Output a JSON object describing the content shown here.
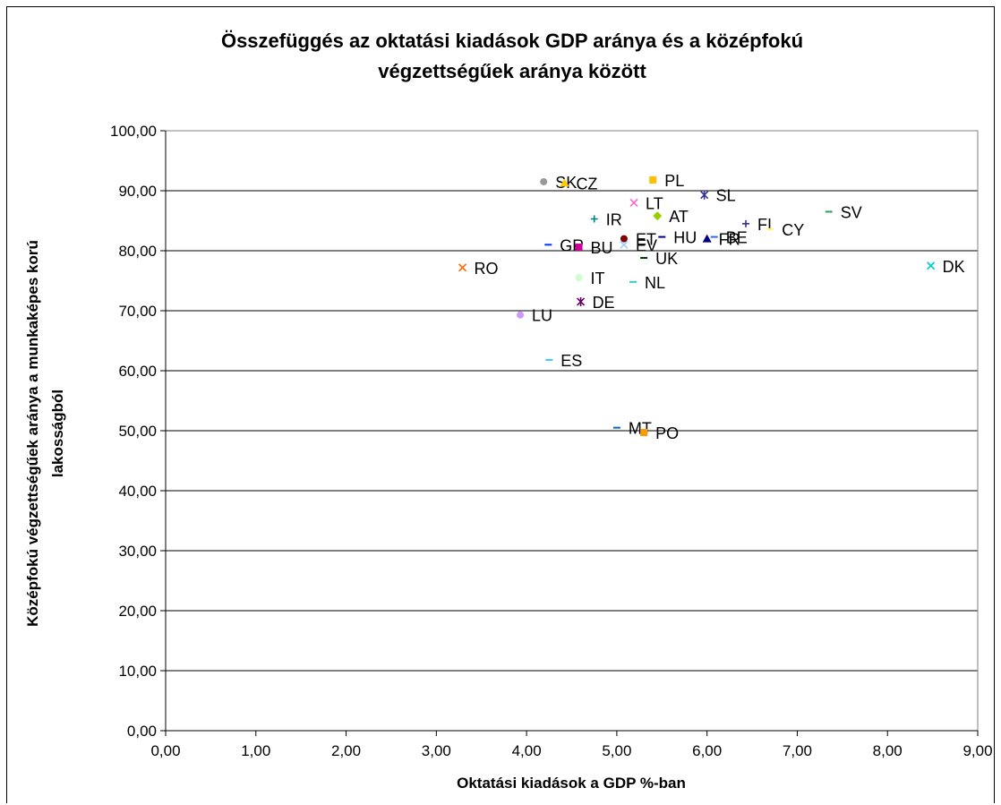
{
  "chart_data": {
    "type": "scatter",
    "title": [
      "Összefüggés az oktatási kiadások GDP aránya és a középfokú",
      "végzettségűek aránya között"
    ],
    "xlabel": "Oktatási kiadások a GDP %-ban",
    "ylabel": [
      "Középfokú végzettségűek aránya a munkaképes korú",
      "lakosságból"
    ],
    "xlim": [
      0,
      9
    ],
    "ylim": [
      0,
      100
    ],
    "xticks": [
      "0,00",
      "1,00",
      "2,00",
      "3,00",
      "4,00",
      "5,00",
      "6,00",
      "7,00",
      "8,00",
      "9,00"
    ],
    "yticks": [
      "0,00",
      "10,00",
      "20,00",
      "30,00",
      "40,00",
      "50,00",
      "60,00",
      "70,00",
      "80,00",
      "90,00",
      "100,00"
    ],
    "grid": "horizontal",
    "points": [
      {
        "label": "SK",
        "x": 4.19,
        "y": 91.5,
        "marker": "circle",
        "color": "#999999"
      },
      {
        "label": "CZ",
        "x": 4.42,
        "y": 91.3,
        "marker": "triangle",
        "color": "#ffcc00"
      },
      {
        "label": "PL",
        "x": 5.4,
        "y": 91.8,
        "marker": "square",
        "color": "#ffbf00"
      },
      {
        "label": "SL",
        "x": 5.97,
        "y": 89.3,
        "marker": "star",
        "color": "#333399"
      },
      {
        "label": "LT",
        "x": 5.19,
        "y": 88.0,
        "marker": "x",
        "color": "#ff66cc"
      },
      {
        "label": "SV",
        "x": 7.35,
        "y": 86.5,
        "marker": "dash",
        "color": "#339966"
      },
      {
        "label": "AT",
        "x": 5.45,
        "y": 85.8,
        "marker": "diamond",
        "color": "#99cc00"
      },
      {
        "label": "IR",
        "x": 4.75,
        "y": 85.3,
        "marker": "plus",
        "color": "#008080"
      },
      {
        "label": "FI",
        "x": 6.43,
        "y": 84.5,
        "marker": "plus",
        "color": "#333399"
      },
      {
        "label": "CY",
        "x": 6.7,
        "y": 83.6,
        "marker": "dash",
        "color": "#ffff66"
      },
      {
        "label": "HU",
        "x": 5.5,
        "y": 82.3,
        "marker": "dash",
        "color": "#000080"
      },
      {
        "label": "FR",
        "x": 6.0,
        "y": 82.0,
        "marker": "triangle",
        "color": "#000080"
      },
      {
        "label": "BE",
        "x": 6.08,
        "y": 82.3,
        "marker": "dash",
        "color": "#3366ff"
      },
      {
        "label": "ET",
        "x": 5.08,
        "y": 82.0,
        "marker": "circle",
        "color": "#800000"
      },
      {
        "label": "GR",
        "x": 4.24,
        "y": 81.0,
        "marker": "dash",
        "color": "#0033ff"
      },
      {
        "label": "BU",
        "x": 4.58,
        "y": 80.6,
        "marker": "square",
        "color": "#cc0099"
      },
      {
        "label": "EV",
        "x": 5.08,
        "y": 81.0,
        "marker": "x",
        "color": "#99ccff"
      },
      {
        "label": "UK",
        "x": 5.3,
        "y": 78.8,
        "marker": "dash",
        "color": "#003300"
      },
      {
        "label": "DK",
        "x": 8.48,
        "y": 77.5,
        "marker": "x",
        "color": "#00cccc"
      },
      {
        "label": "RO",
        "x": 3.29,
        "y": 77.2,
        "marker": "x",
        "color": "#ff6600"
      },
      {
        "label": "IT",
        "x": 4.58,
        "y": 75.5,
        "marker": "circle",
        "color": "#ccffcc"
      },
      {
        "label": "NL",
        "x": 5.18,
        "y": 74.8,
        "marker": "dash",
        "color": "#33cccc"
      },
      {
        "label": "DE",
        "x": 4.6,
        "y": 71.5,
        "marker": "star",
        "color": "#660066"
      },
      {
        "label": "LU",
        "x": 3.93,
        "y": 69.3,
        "marker": "circle",
        "color": "#cc99ff"
      },
      {
        "label": "ES",
        "x": 4.25,
        "y": 61.8,
        "marker": "dash",
        "color": "#33ccff"
      },
      {
        "label": "MT",
        "x": 5.0,
        "y": 50.5,
        "marker": "dash",
        "color": "#0066cc"
      },
      {
        "label": "PO",
        "x": 5.3,
        "y": 49.7,
        "marker": "square",
        "color": "#ff9900"
      }
    ]
  }
}
